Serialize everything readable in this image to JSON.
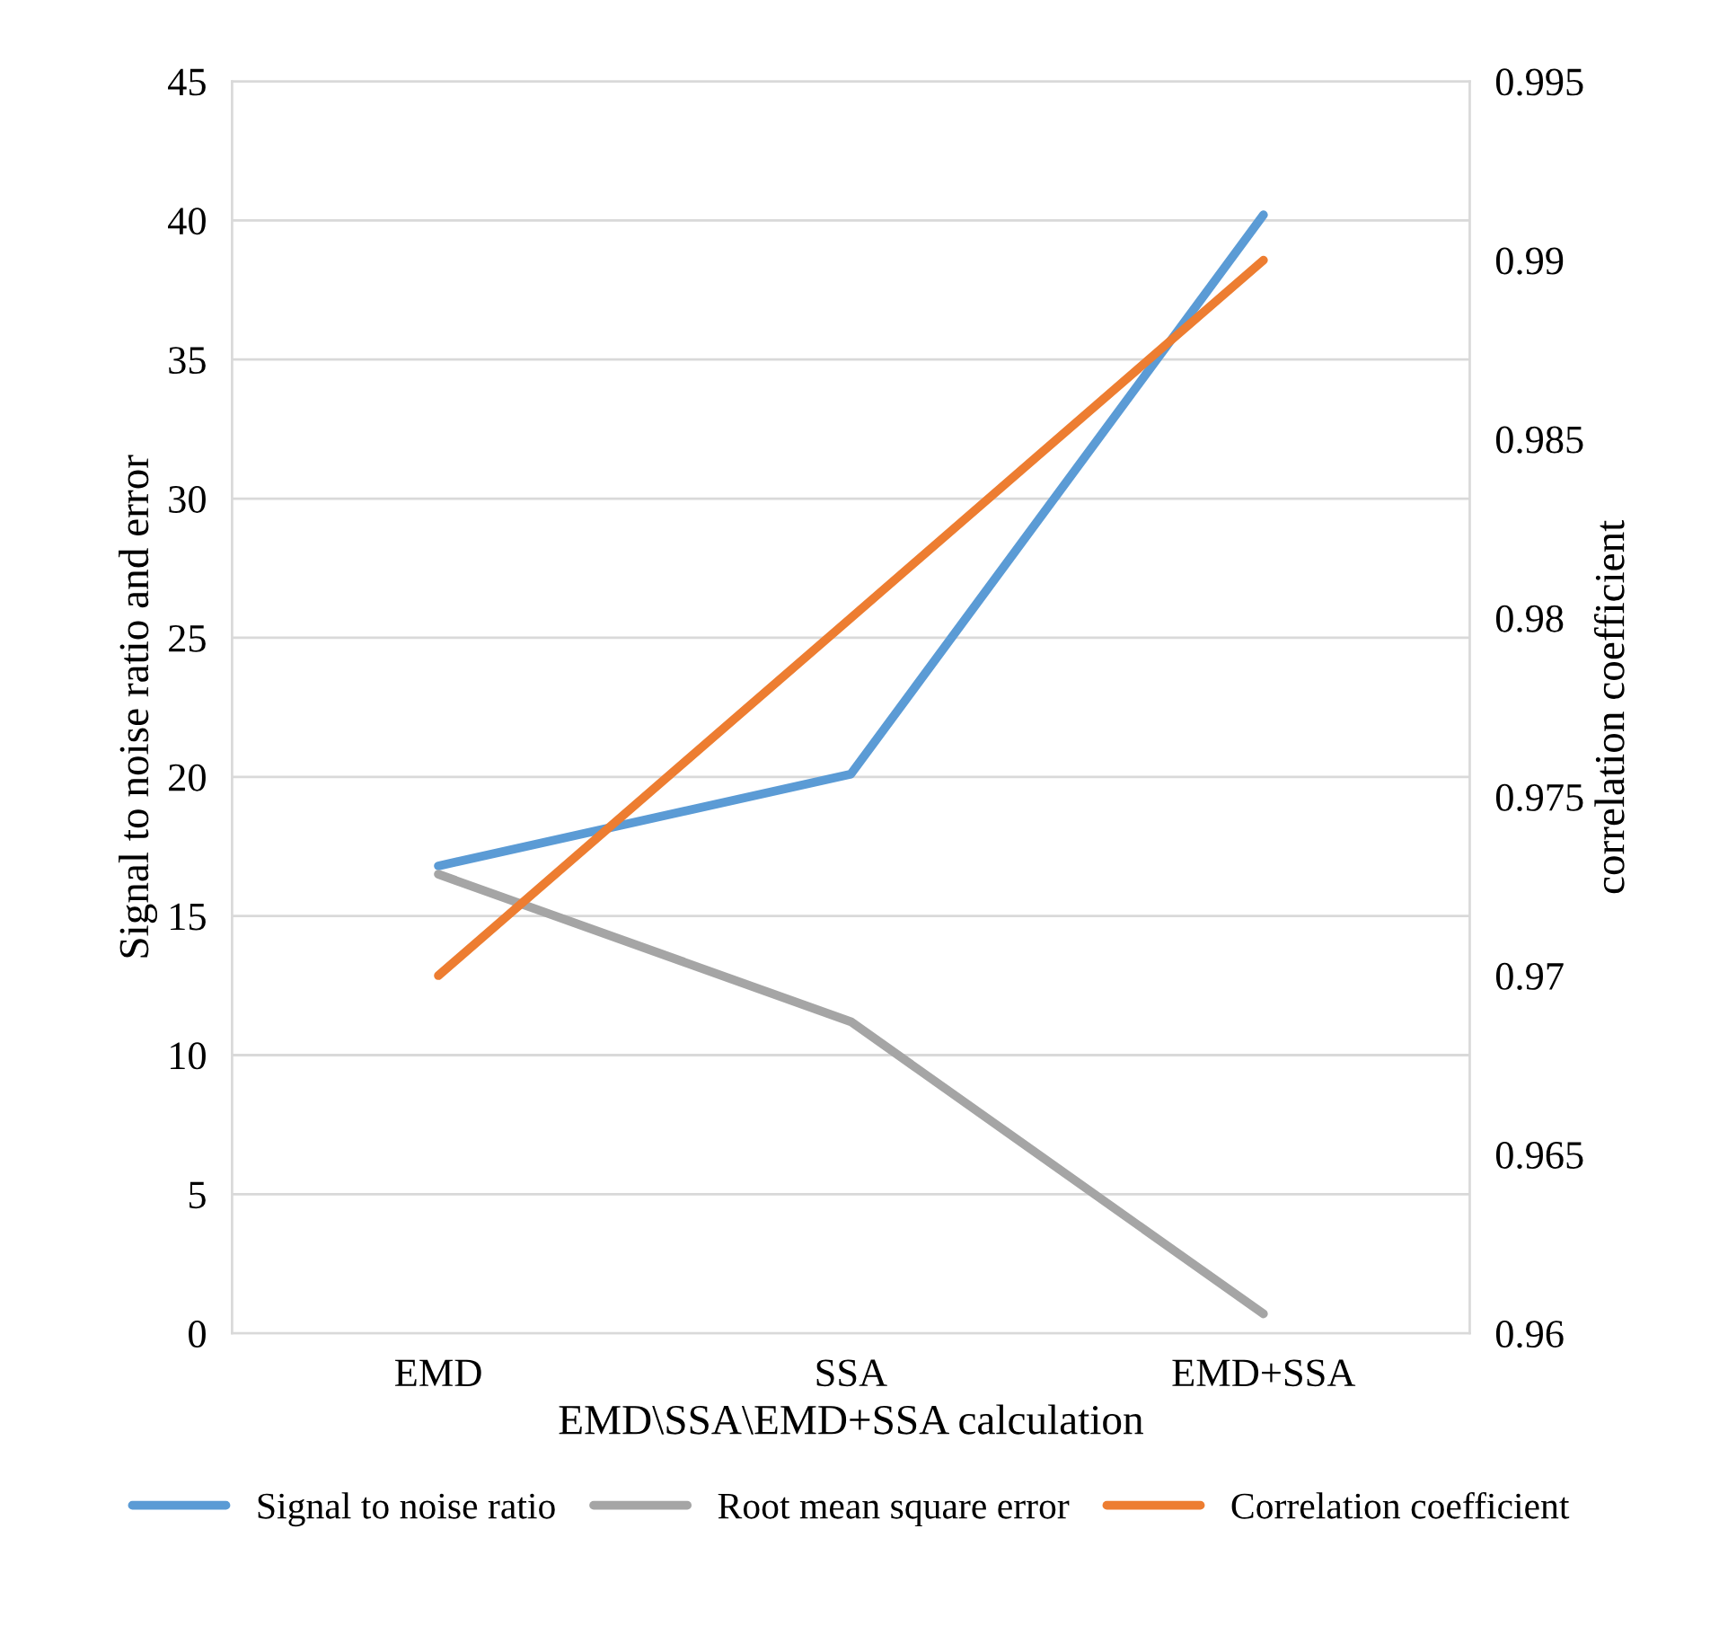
{
  "chart_data": {
    "type": "line",
    "xlabel": "EMD\\SSA\\EMD+SSA calculation",
    "ylabel": "Signal to noise ratio and error",
    "y2label": "correlation coefficient",
    "categories": [
      "EMD",
      "SSA",
      "EMD+SSA"
    ],
    "series": [
      {
        "name": "Signal to noise ratio",
        "color": "#5b9bd5",
        "values": [
          16.8,
          20.1,
          40.2
        ]
      },
      {
        "name": "Root mean square error",
        "color": "#a5a5a5",
        "values": [
          16.5,
          11.2,
          0.7
        ]
      },
      {
        "name": "Correlation coefficient",
        "color": "#ed7d31",
        "values": [
          0.97,
          0.98,
          0.99
        ],
        "axis": "y2"
      }
    ],
    "ylim": [
      0,
      45
    ],
    "yticks": [
      0,
      5,
      10,
      15,
      20,
      25,
      30,
      35,
      40,
      45
    ],
    "y2lim": [
      0.96,
      0.995
    ],
    "y2ticks": [
      0.96,
      0.965,
      0.97,
      0.975,
      0.98,
      0.985,
      0.99,
      0.995
    ],
    "grid": "y",
    "legend": "bottom",
    "marker": "none",
    "line_style": "solid"
  }
}
